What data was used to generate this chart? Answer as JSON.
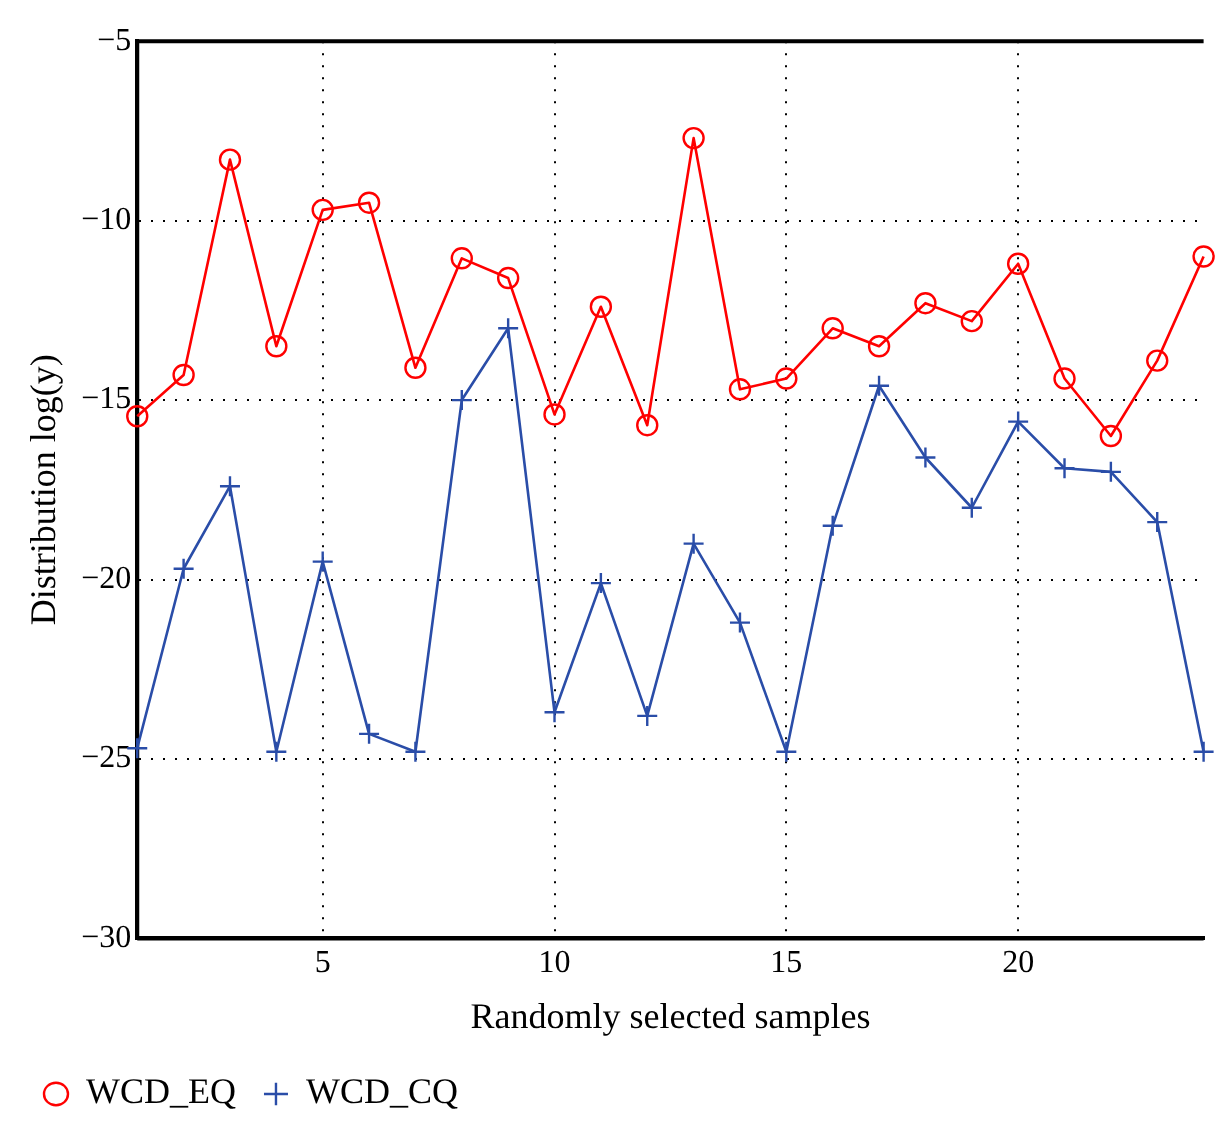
{
  "chart_data": {
    "type": "line",
    "xlabel": "Randomly selected samples",
    "ylabel": "Distribution log(y)",
    "x": [
      1,
      2,
      3,
      4,
      5,
      6,
      7,
      8,
      9,
      10,
      11,
      12,
      13,
      14,
      15,
      16,
      17,
      18,
      19,
      20,
      21,
      22,
      23,
      24
    ],
    "xlim": [
      1,
      24
    ],
    "xticks": [
      5,
      10,
      15,
      20
    ],
    "ylim": [
      -30,
      -5
    ],
    "yticks": [
      -30,
      -25,
      -20,
      -15,
      -10,
      -5
    ],
    "grid": true,
    "legend": "bottom left",
    "line_style": "solid",
    "series": [
      {
        "name": "WCD_EQ",
        "color": "#ff0000",
        "marker": "circle",
        "values": [
          -15.45,
          -14.3,
          -8.3,
          -13.5,
          -9.7,
          -9.5,
          -14.1,
          -11.05,
          -11.6,
          -15.4,
          -12.4,
          -15.7,
          -7.7,
          -14.7,
          -14.4,
          -13,
          -13.5,
          -12.3,
          -12.8,
          -11.2,
          -14.4,
          -16,
          -13.9,
          -11
        ]
      },
      {
        "name": "WCD_CQ",
        "color": "#2a4da8",
        "marker": "cross",
        "values": [
          -24.7,
          -19.7,
          -17.4,
          -24.8,
          -19.5,
          -24.3,
          -24.8,
          -15,
          -13,
          -23.7,
          -20.1,
          -23.8,
          -19,
          -21.2,
          -24.8,
          -18.5,
          -14.6,
          -16.6,
          -18,
          -15.6,
          -16.9,
          -17,
          -18.4,
          -24.8
        ]
      }
    ]
  }
}
